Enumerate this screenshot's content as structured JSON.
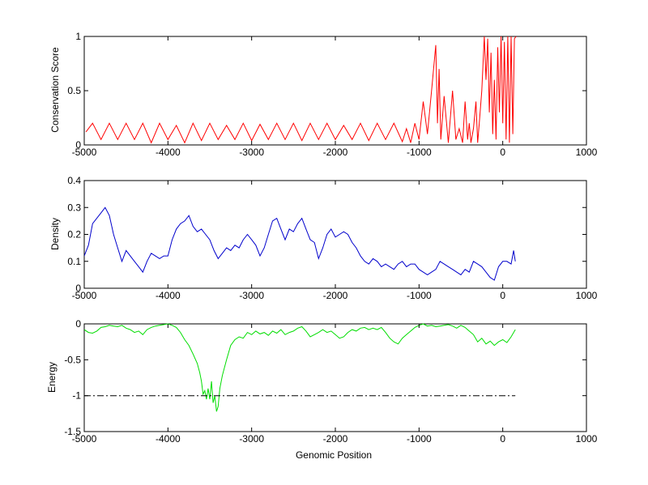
{
  "figure": {
    "xlabel": "Genomic Position",
    "background": "#ffffff",
    "axis_color": "#000000"
  },
  "chart_data": [
    {
      "type": "line",
      "ylabel": "Conservation Score",
      "xlim": [
        -5000,
        1000
      ],
      "ylim": [
        0,
        1
      ],
      "xticks": [
        -5000,
        -4000,
        -3000,
        -2000,
        -1000,
        0,
        1000
      ],
      "xtick_labels": [
        "-5000",
        "-4000",
        "-3000",
        "-2000",
        "-1000",
        "0",
        "1000"
      ],
      "yticks": [
        0,
        0.5,
        1
      ],
      "ytick_labels": [
        "0",
        "0.5",
        "1"
      ],
      "grid": false,
      "series": [
        {
          "color": "#ff0000",
          "x": [
            -4980,
            -4900,
            -4800,
            -4700,
            -4600,
            -4500,
            -4400,
            -4300,
            -4200,
            -4100,
            -4000,
            -3900,
            -3800,
            -3700,
            -3600,
            -3500,
            -3400,
            -3300,
            -3200,
            -3100,
            -3000,
            -2900,
            -2800,
            -2700,
            -2600,
            -2500,
            -2400,
            -2300,
            -2200,
            -2100,
            -2000,
            -1900,
            -1800,
            -1700,
            -1600,
            -1500,
            -1400,
            -1300,
            -1200,
            -1150,
            -1100,
            -1050,
            -1000,
            -950,
            -900,
            -850,
            -800,
            -780,
            -760,
            -740,
            -700,
            -650,
            -600,
            -560,
            -520,
            -480,
            -450,
            -420,
            -400,
            -380,
            -350,
            -320,
            -300,
            -280,
            -250,
            -220,
            -200,
            -180,
            -160,
            -140,
            -120,
            -100,
            -80,
            -60,
            -40,
            -20,
            0,
            20,
            40,
            60,
            80,
            100,
            120,
            140,
            160
          ],
          "y": [
            0.12,
            0.2,
            0.05,
            0.2,
            0.05,
            0.2,
            0.05,
            0.2,
            0.02,
            0.2,
            0.05,
            0.18,
            0.02,
            0.2,
            0.04,
            0.2,
            0.05,
            0.18,
            0.05,
            0.2,
            0.04,
            0.19,
            0.05,
            0.2,
            0.05,
            0.2,
            0.04,
            0.2,
            0.05,
            0.2,
            0.05,
            0.18,
            0.05,
            0.2,
            0.04,
            0.2,
            0.05,
            0.2,
            0.03,
            0.15,
            0.02,
            0.2,
            0.05,
            0.4,
            0.1,
            0.5,
            0.92,
            0.2,
            0.7,
            0.05,
            0.45,
            0.02,
            0.5,
            0.05,
            0.15,
            0.02,
            0.4,
            0.05,
            0.2,
            0.02,
            0.15,
            0.4,
            0.02,
            0.2,
            0.5,
            1.0,
            0.6,
            0.98,
            0.3,
            0.85,
            0.1,
            0.6,
            0.05,
            0.9,
            0.3,
            1.0,
            0.2,
            0.95,
            0.05,
            1.0,
            0.02,
            1.0,
            0.1,
            0.98,
            1.0
          ]
        }
      ]
    },
    {
      "type": "line",
      "ylabel": "Density",
      "xlim": [
        -5000,
        1000
      ],
      "ylim": [
        0,
        0.4
      ],
      "xticks": [
        -5000,
        -4000,
        -3000,
        -2000,
        -1000,
        0,
        1000
      ],
      "xtick_labels": [
        "-5000",
        "-4000",
        "-3000",
        "-2000",
        "-1000",
        "0",
        "1000"
      ],
      "yticks": [
        0,
        0.1,
        0.2,
        0.3,
        0.4
      ],
      "ytick_labels": [
        "0",
        "0.1",
        "0.2",
        "0.3",
        "0.4"
      ],
      "grid": false,
      "series": [
        {
          "color": "#0000cc",
          "x": [
            -5000,
            -4950,
            -4900,
            -4850,
            -4800,
            -4750,
            -4700,
            -4650,
            -4600,
            -4550,
            -4500,
            -4450,
            -4400,
            -4350,
            -4300,
            -4250,
            -4200,
            -4150,
            -4100,
            -4050,
            -4000,
            -3950,
            -3900,
            -3850,
            -3800,
            -3750,
            -3700,
            -3650,
            -3600,
            -3550,
            -3500,
            -3450,
            -3400,
            -3350,
            -3300,
            -3250,
            -3200,
            -3150,
            -3100,
            -3050,
            -3000,
            -2950,
            -2900,
            -2850,
            -2800,
            -2750,
            -2700,
            -2650,
            -2600,
            -2550,
            -2500,
            -2450,
            -2400,
            -2350,
            -2300,
            -2250,
            -2200,
            -2150,
            -2100,
            -2050,
            -2000,
            -1950,
            -1900,
            -1850,
            -1800,
            -1750,
            -1700,
            -1650,
            -1600,
            -1550,
            -1500,
            -1450,
            -1400,
            -1350,
            -1300,
            -1250,
            -1200,
            -1150,
            -1100,
            -1050,
            -1000,
            -950,
            -900,
            -850,
            -800,
            -750,
            -700,
            -650,
            -600,
            -550,
            -500,
            -450,
            -400,
            -350,
            -300,
            -250,
            -200,
            -150,
            -100,
            -50,
            0,
            50,
            100,
            130,
            150
          ],
          "y": [
            0.12,
            0.16,
            0.24,
            0.26,
            0.28,
            0.3,
            0.27,
            0.2,
            0.15,
            0.1,
            0.14,
            0.12,
            0.1,
            0.08,
            0.06,
            0.1,
            0.13,
            0.12,
            0.11,
            0.12,
            0.12,
            0.18,
            0.22,
            0.24,
            0.25,
            0.27,
            0.23,
            0.21,
            0.22,
            0.2,
            0.18,
            0.14,
            0.11,
            0.13,
            0.15,
            0.14,
            0.16,
            0.15,
            0.18,
            0.2,
            0.18,
            0.16,
            0.12,
            0.15,
            0.2,
            0.25,
            0.26,
            0.22,
            0.18,
            0.22,
            0.21,
            0.24,
            0.26,
            0.22,
            0.18,
            0.17,
            0.11,
            0.15,
            0.2,
            0.22,
            0.19,
            0.2,
            0.21,
            0.2,
            0.17,
            0.15,
            0.12,
            0.1,
            0.09,
            0.11,
            0.1,
            0.08,
            0.09,
            0.08,
            0.07,
            0.09,
            0.1,
            0.08,
            0.09,
            0.09,
            0.07,
            0.06,
            0.05,
            0.06,
            0.07,
            0.1,
            0.09,
            0.08,
            0.07,
            0.06,
            0.05,
            0.07,
            0.06,
            0.1,
            0.09,
            0.08,
            0.06,
            0.04,
            0.03,
            0.08,
            0.1,
            0.1,
            0.09,
            0.14,
            0.1
          ]
        }
      ]
    },
    {
      "type": "line",
      "ylabel": "Energy",
      "xlabel": "Genomic Position",
      "xlim": [
        -5000,
        1000
      ],
      "ylim": [
        -1.5,
        0
      ],
      "xticks": [
        -5000,
        -4000,
        -3000,
        -2000,
        -1000,
        0,
        1000
      ],
      "xtick_labels": [
        "-5000",
        "-4000",
        "-3000",
        "-2000",
        "-1000",
        "0",
        "1000"
      ],
      "yticks": [
        -1.5,
        -1,
        -0.5,
        0
      ],
      "ytick_labels": [
        "-1.5",
        "-1",
        "-0.5",
        "0"
      ],
      "grid": false,
      "series": [
        {
          "color": "#00dd00",
          "x": [
            -5000,
            -4950,
            -4900,
            -4850,
            -4800,
            -4750,
            -4700,
            -4650,
            -4600,
            -4550,
            -4500,
            -4450,
            -4400,
            -4350,
            -4300,
            -4250,
            -4200,
            -4150,
            -4100,
            -4050,
            -4000,
            -3950,
            -3900,
            -3850,
            -3800,
            -3750,
            -3700,
            -3650,
            -3620,
            -3600,
            -3580,
            -3560,
            -3540,
            -3520,
            -3500,
            -3480,
            -3460,
            -3440,
            -3420,
            -3400,
            -3380,
            -3350,
            -3300,
            -3250,
            -3200,
            -3150,
            -3100,
            -3050,
            -3000,
            -2950,
            -2900,
            -2850,
            -2800,
            -2750,
            -2700,
            -2650,
            -2600,
            -2550,
            -2500,
            -2450,
            -2400,
            -2350,
            -2300,
            -2250,
            -2200,
            -2150,
            -2100,
            -2050,
            -2000,
            -1950,
            -1900,
            -1850,
            -1800,
            -1750,
            -1700,
            -1650,
            -1600,
            -1550,
            -1500,
            -1450,
            -1400,
            -1350,
            -1300,
            -1250,
            -1200,
            -1150,
            -1100,
            -1050,
            -1000,
            -950,
            -900,
            -850,
            -800,
            -750,
            -700,
            -650,
            -600,
            -550,
            -500,
            -450,
            -400,
            -350,
            -300,
            -250,
            -200,
            -150,
            -100,
            -50,
            0,
            50,
            100,
            150
          ],
          "y": [
            -0.08,
            -0.12,
            -0.13,
            -0.1,
            -0.05,
            -0.04,
            -0.02,
            -0.03,
            -0.04,
            -0.02,
            -0.06,
            -0.08,
            -0.12,
            -0.1,
            -0.15,
            -0.08,
            -0.05,
            -0.03,
            -0.02,
            -0.01,
            0.0,
            -0.02,
            -0.05,
            -0.12,
            -0.22,
            -0.3,
            -0.42,
            -0.55,
            -0.68,
            -0.8,
            -0.98,
            -0.93,
            -1.05,
            -0.9,
            -1.05,
            -0.8,
            -1.1,
            -1.0,
            -1.22,
            -1.15,
            -0.9,
            -0.72,
            -0.5,
            -0.3,
            -0.22,
            -0.18,
            -0.2,
            -0.12,
            -0.15,
            -0.1,
            -0.14,
            -0.12,
            -0.16,
            -0.1,
            -0.13,
            -0.08,
            -0.15,
            -0.12,
            -0.1,
            -0.06,
            -0.04,
            -0.1,
            -0.18,
            -0.15,
            -0.12,
            -0.08,
            -0.12,
            -0.1,
            -0.15,
            -0.2,
            -0.18,
            -0.12,
            -0.08,
            -0.1,
            -0.06,
            -0.05,
            -0.08,
            -0.06,
            -0.08,
            -0.05,
            -0.12,
            -0.2,
            -0.25,
            -0.28,
            -0.2,
            -0.15,
            -0.1,
            -0.05,
            -0.02,
            0.0,
            -0.03,
            -0.02,
            -0.04,
            -0.03,
            -0.02,
            -0.01,
            -0.03,
            -0.06,
            -0.02,
            -0.05,
            -0.1,
            -0.15,
            -0.25,
            -0.2,
            -0.28,
            -0.24,
            -0.3,
            -0.25,
            -0.22,
            -0.26,
            -0.18,
            -0.08
          ]
        },
        {
          "color": "#000000",
          "dash": "dash-dot",
          "x": [
            -5000,
            150
          ],
          "y": [
            -1.0,
            -1.0
          ]
        }
      ]
    }
  ]
}
